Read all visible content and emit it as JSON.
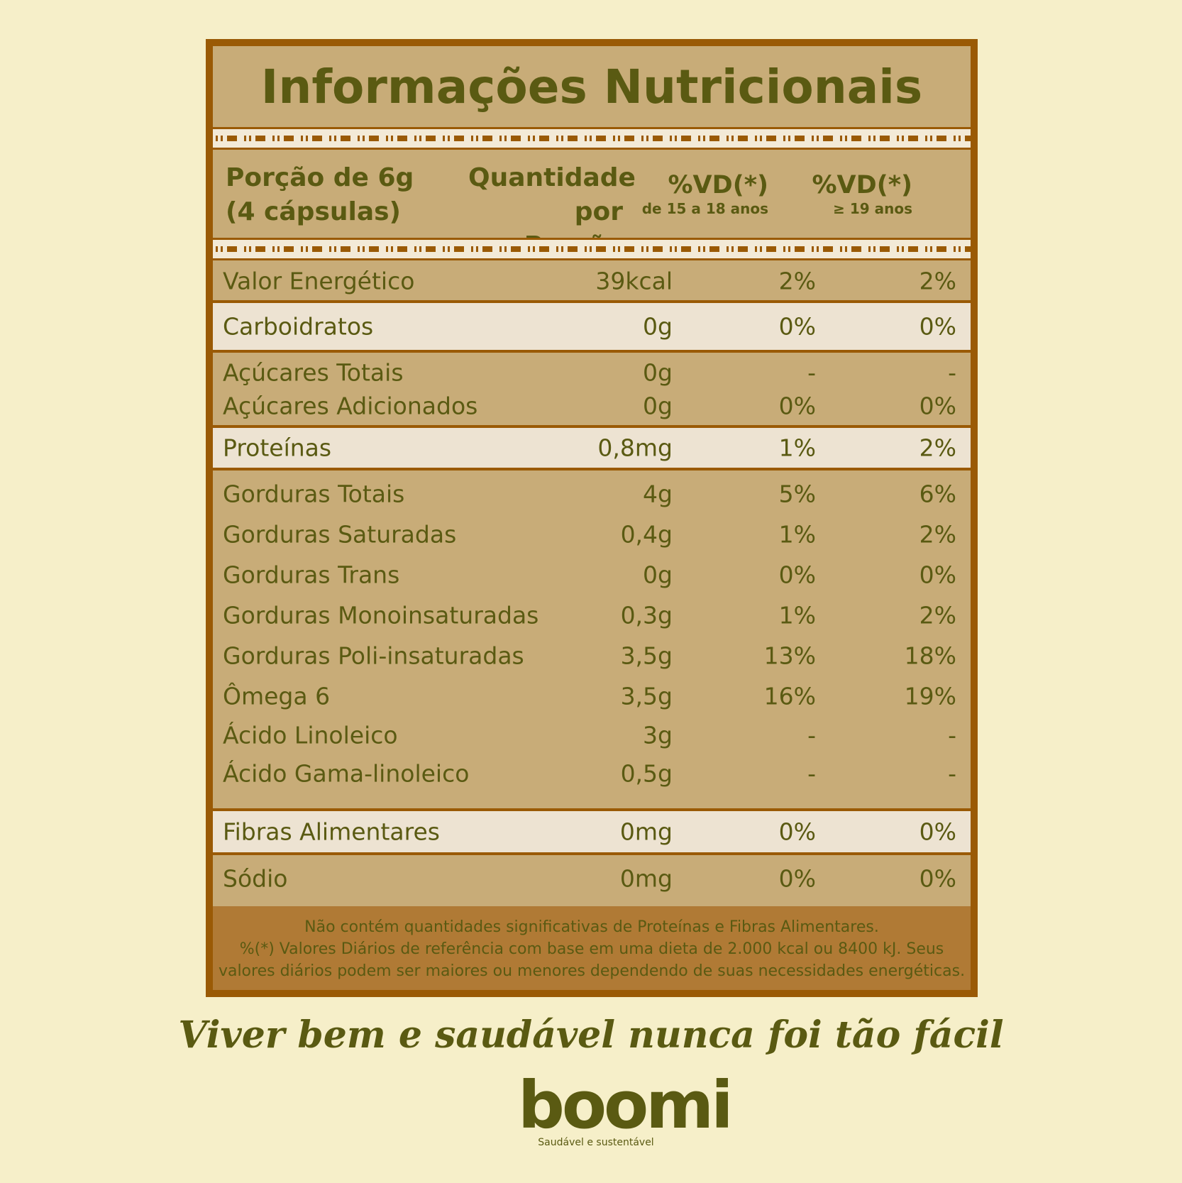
{
  "title": "Informações Nutricionais",
  "header": {
    "portion_line1": "Porção de 6g",
    "portion_line2": "(4 cápsulas)",
    "qty_line1": "Quantidade",
    "qty_line2": "por Porção",
    "vd1": "%VD(*)",
    "vd1_sub": "de 15 a 18 anos",
    "vd2": "%VD(*)",
    "vd2_sub": "≥ 19 anos"
  },
  "rows": [
    {
      "name": "Valor Energético",
      "qty": "39kcal",
      "vd1": "2%",
      "vd2": "2%"
    },
    {
      "name": "Carboidratos",
      "qty": "0g",
      "vd1": "0%",
      "vd2": "0%"
    },
    {
      "name": "Açúcares Totais",
      "qty": "0g",
      "vd1": "-",
      "vd2": "-"
    },
    {
      "name": "Açúcares Adicionados",
      "qty": "0g",
      "vd1": "0%",
      "vd2": "0%"
    },
    {
      "name": "Proteínas",
      "qty": "0,8mg",
      "vd1": "1%",
      "vd2": "2%"
    },
    {
      "name": "Gorduras Totais",
      "qty": "4g",
      "vd1": "5%",
      "vd2": "6%"
    },
    {
      "name": "Gorduras Saturadas",
      "qty": "0,4g",
      "vd1": "1%",
      "vd2": "2%"
    },
    {
      "name": "Gorduras Trans",
      "qty": "0g",
      "vd1": "0%",
      "vd2": "0%"
    },
    {
      "name": "Gorduras Monoinsaturadas",
      "qty": "0,3g",
      "vd1": "1%",
      "vd2": "2%"
    },
    {
      "name": "Gorduras Poli-insaturadas",
      "qty": "3,5g",
      "vd1": "13%",
      "vd2": "18%"
    },
    {
      "name": "Ômega 6",
      "qty": "3,5g",
      "vd1": "16%",
      "vd2": "19%"
    },
    {
      "name": "Ácido Linoleico",
      "qty": "3g",
      "vd1": "-",
      "vd2": "-"
    },
    {
      "name": "Ácido Gama-linoleico",
      "qty": "0,5g",
      "vd1": "-",
      "vd2": "-"
    },
    {
      "name": "Fibras Alimentares",
      "qty": "0mg",
      "vd1": "0%",
      "vd2": "0%"
    },
    {
      "name": "Sódio",
      "qty": "0mg",
      "vd1": "0%",
      "vd2": "0%"
    }
  ],
  "footnote": {
    "line1": "Não contém quantidades significativas de Proteínas e Fibras Alimentares.",
    "line2": "%(*) Valores Diários de referência com base em uma dieta de 2.000 kcal ou 8400 kJ. Seus",
    "line3": "valores diários podem ser maiores ou menores dependendo de suas necessidades energéticas."
  },
  "slogan": "Viver bem e saudável nunca foi tão fácil",
  "logo": {
    "brand": "boomi",
    "tagline": "Saudável e sustentável"
  },
  "colors": {
    "background": "#f6efc9",
    "frame": "#9a5a05",
    "panel": "#c8ac78",
    "text": "#5a5a12"
  }
}
